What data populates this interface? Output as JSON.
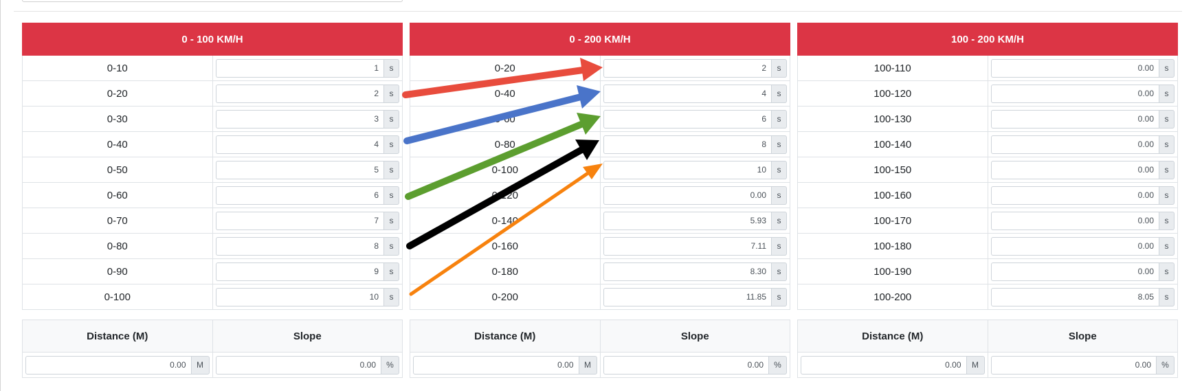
{
  "tables": [
    {
      "header": "0 - 100 KM/H",
      "rows": [
        {
          "label": "0-10",
          "value": "1",
          "unit": "s"
        },
        {
          "label": "0-20",
          "value": "2",
          "unit": "s"
        },
        {
          "label": "0-30",
          "value": "3",
          "unit": "s"
        },
        {
          "label": "0-40",
          "value": "4",
          "unit": "s"
        },
        {
          "label": "0-50",
          "value": "5",
          "unit": "s"
        },
        {
          "label": "0-60",
          "value": "6",
          "unit": "s"
        },
        {
          "label": "0-70",
          "value": "7",
          "unit": "s"
        },
        {
          "label": "0-80",
          "value": "8",
          "unit": "s"
        },
        {
          "label": "0-90",
          "value": "9",
          "unit": "s"
        },
        {
          "label": "0-100",
          "value": "10",
          "unit": "s"
        }
      ]
    },
    {
      "header": "0 - 200 KM/H",
      "rows": [
        {
          "label": "0-20",
          "value": "2",
          "unit": "s"
        },
        {
          "label": "0-40",
          "value": "4",
          "unit": "s"
        },
        {
          "label": "0-60",
          "value": "6",
          "unit": "s"
        },
        {
          "label": "0-80",
          "value": "8",
          "unit": "s"
        },
        {
          "label": "0-100",
          "value": "10",
          "unit": "s"
        },
        {
          "label": "0-120",
          "value": "0.00",
          "unit": "s"
        },
        {
          "label": "0-140",
          "value": "5.93",
          "unit": "s"
        },
        {
          "label": "0-160",
          "value": "7.11",
          "unit": "s"
        },
        {
          "label": "0-180",
          "value": "8.30",
          "unit": "s"
        },
        {
          "label": "0-200",
          "value": "11.85",
          "unit": "s"
        }
      ]
    },
    {
      "header": "100 - 200 KM/H",
      "rows": [
        {
          "label": "100-110",
          "value": "0.00",
          "unit": "s"
        },
        {
          "label": "100-120",
          "value": "0.00",
          "unit": "s"
        },
        {
          "label": "100-130",
          "value": "0.00",
          "unit": "s"
        },
        {
          "label": "100-140",
          "value": "0.00",
          "unit": "s"
        },
        {
          "label": "100-150",
          "value": "0.00",
          "unit": "s"
        },
        {
          "label": "100-160",
          "value": "0.00",
          "unit": "s"
        },
        {
          "label": "100-170",
          "value": "0.00",
          "unit": "s"
        },
        {
          "label": "100-180",
          "value": "0.00",
          "unit": "s"
        },
        {
          "label": "100-190",
          "value": "0.00",
          "unit": "s"
        },
        {
          "label": "100-200",
          "value": "8.05",
          "unit": "s"
        }
      ]
    }
  ],
  "meta_tables": [
    {
      "distance_label": "Distance (M)",
      "slope_label": "Slope",
      "distance_value": "0.00",
      "distance_unit": "M",
      "slope_value": "0.00",
      "slope_unit": "%"
    },
    {
      "distance_label": "Distance (M)",
      "slope_label": "Slope",
      "distance_value": "0.00",
      "distance_unit": "M",
      "slope_value": "0.00",
      "slope_unit": "%"
    },
    {
      "distance_label": "Distance (M)",
      "slope_label": "Slope",
      "distance_value": "0.00",
      "distance_unit": "M",
      "slope_value": "0.00",
      "slope_unit": "%"
    }
  ],
  "annotation_arrows": [
    {
      "name": "red-arrow",
      "color": "#e84c3d",
      "from": "0 - 100 KM/H / 0-20",
      "to": "0 - 200 KM/H / 0-20"
    },
    {
      "name": "blue-arrow",
      "color": "#4a74c9",
      "from": "0 - 100 KM/H / 0-40",
      "to": "0 - 200 KM/H / 0-40"
    },
    {
      "name": "green-arrow",
      "color": "#5c9e2f",
      "from": "0 - 100 KM/H / 0-60",
      "to": "0 - 200 KM/H / 0-60"
    },
    {
      "name": "black-arrow",
      "color": "#000000",
      "from": "0 - 100 KM/H / 0-80",
      "to": "0 - 200 KM/H / 0-80"
    },
    {
      "name": "orange-arrow",
      "color": "#f7820e",
      "from": "0 - 100 KM/H / 0-100",
      "to": "0 - 200 KM/H / 0-100"
    }
  ]
}
